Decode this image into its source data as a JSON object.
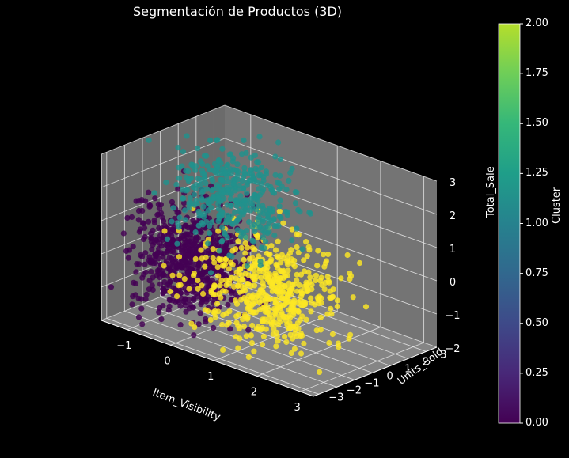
{
  "chart_data": {
    "type": "scatter",
    "projection": "3d",
    "title": "Segmentación de Productos (3D)",
    "xlabel": "Item_Visibility",
    "ylabel": "Units_Sold",
    "zlabel": "Total_Sale",
    "xlim": [
      -1.6,
      3.3
    ],
    "ylim": [
      -3.3,
      3.6
    ],
    "zlim": [
      -2,
      3
    ],
    "xticks": [
      "−1",
      "0",
      "1",
      "2",
      "3"
    ],
    "yticks": [
      "−3",
      "−2",
      "−1",
      "0",
      "1",
      "2",
      "3"
    ],
    "zticks": [
      "−2",
      "−1",
      "0",
      "1",
      "2",
      "3"
    ],
    "background": "#000000",
    "pane_color": "#7a7a7a",
    "colorbar": {
      "label": "Cluster",
      "range": [
        0,
        2
      ],
      "ticks": [
        "0.00",
        "0.25",
        "0.50",
        "0.75",
        "1.00",
        "1.25",
        "1.50",
        "1.75",
        "2.00"
      ],
      "colormap": "viridis"
    },
    "series": [
      {
        "cluster": 0,
        "color": "#440154",
        "point_count": 700,
        "center": [
          -0.6,
          -0.7,
          -0.3
        ],
        "spread": [
          0.55,
          0.9,
          0.8
        ]
      },
      {
        "cluster": 1,
        "color": "#21918c",
        "point_count": 380,
        "center": [
          -0.3,
          0.9,
          1.4
        ],
        "spread": [
          0.6,
          0.9,
          0.7
        ]
      },
      {
        "cluster": 2,
        "color": "#fde725",
        "point_count": 520,
        "center": [
          1.0,
          -0.2,
          -0.6
        ],
        "spread": [
          0.7,
          1.0,
          0.8
        ]
      }
    ]
  }
}
